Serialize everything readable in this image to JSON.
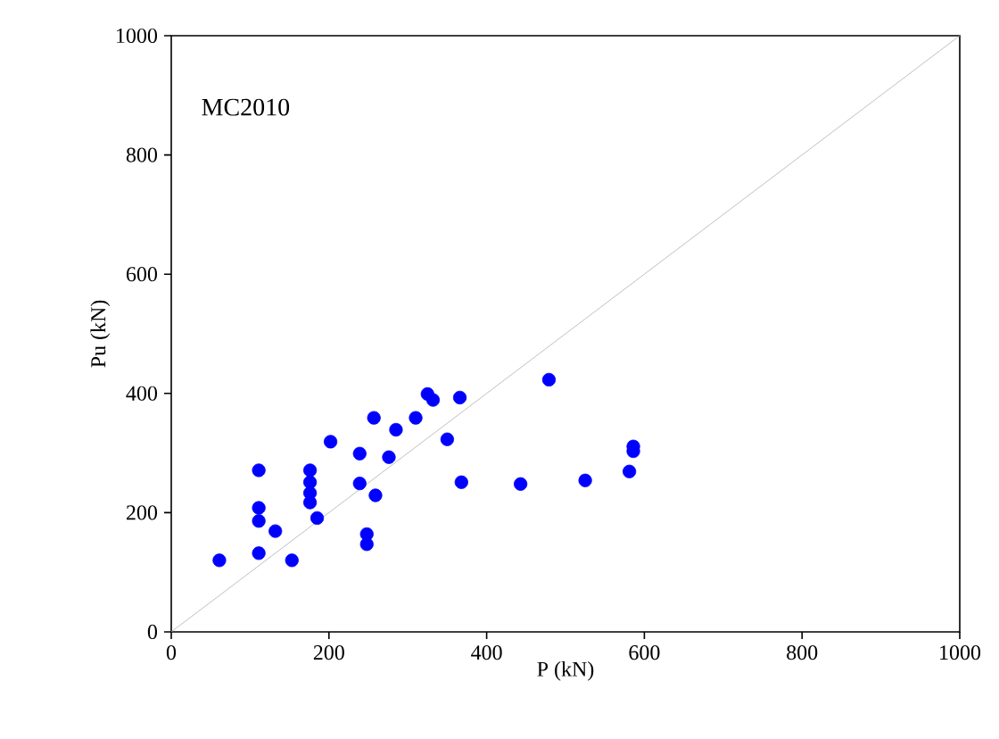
{
  "chart_data": {
    "type": "scatter",
    "xlabel": "P (kN)",
    "ylabel": "Pu (kN)",
    "annotations": [
      "MC2010"
    ],
    "xlim": [
      0,
      1000
    ],
    "ylim": [
      0,
      1000
    ],
    "xticks": [
      0,
      200,
      400,
      600,
      800,
      1000
    ],
    "yticks": [
      0,
      200,
      400,
      600,
      800,
      1000
    ],
    "grid": false,
    "marker": "circle",
    "series": [
      {
        "color": "#0000ff",
        "x": [
          61,
          111,
          111,
          111,
          111,
          132,
          153,
          176,
          176,
          176,
          176,
          185,
          202,
          239,
          239,
          248,
          248,
          257,
          259,
          276,
          285,
          310,
          325,
          332,
          350,
          366,
          368,
          443,
          479,
          525,
          586,
          586,
          581
        ],
        "values": [
          120,
          271,
          208,
          186,
          132,
          169,
          120,
          271,
          251,
          233,
          217,
          191,
          319,
          299,
          249,
          164,
          147,
          359,
          229,
          293,
          339,
          359,
          399,
          389,
          323,
          393,
          251,
          248,
          423,
          254,
          311,
          303,
          269
        ]
      },
      {
        "type": "line",
        "color": "#b0b0b0",
        "marker": "none",
        "x": [
          0,
          1000
        ],
        "values": [
          0,
          1000
        ]
      }
    ]
  }
}
